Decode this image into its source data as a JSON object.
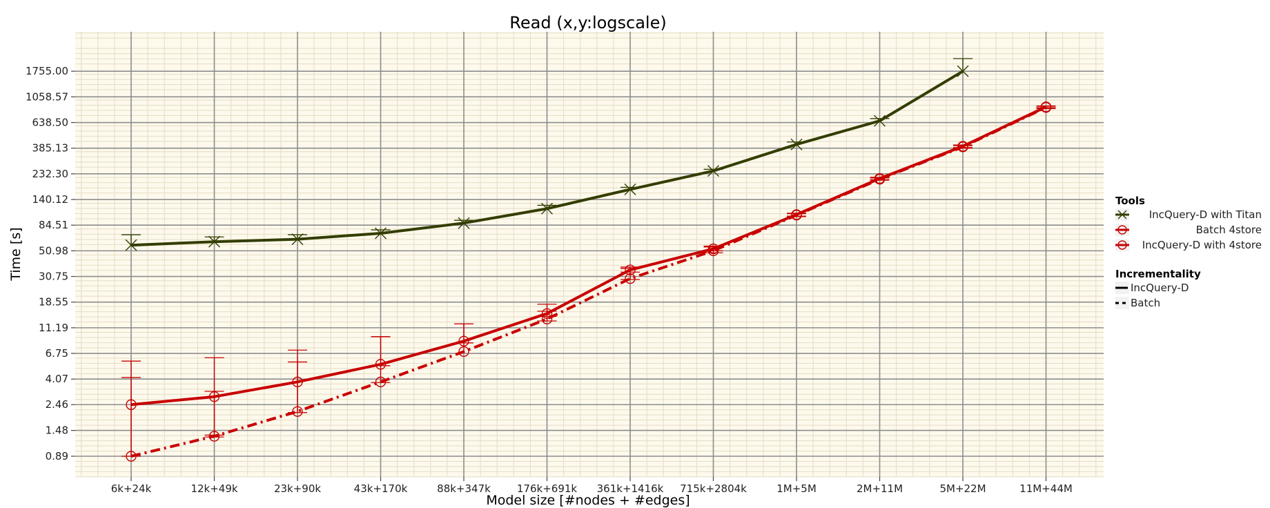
{
  "chart_data": {
    "type": "line",
    "title": "Read (x,y:logscale)",
    "xlabel": "Model size [#nodes + #edges]",
    "ylabel": "Time [s]",
    "y_scale": "log",
    "ylim": [
      0.72,
      3200
    ],
    "grid": true,
    "categories": [
      "6k+24k",
      "12k+49k",
      "23k+90k",
      "43k+170k",
      "88k+347k",
      "176k+691k",
      "361k+1416k",
      "715k+2804k",
      "1M+5M",
      "2M+11M",
      "5M+22M",
      "11M+44M"
    ],
    "y_ticks": [
      "0.89",
      "1.48",
      "2.46",
      "4.07",
      "6.75",
      "11.19",
      "18.55",
      "30.75",
      "50.98",
      "84.51",
      "140.12",
      "232.30",
      "385.13",
      "638.50",
      "1058.57",
      "1755.00"
    ],
    "series": [
      {
        "name": "IncQuery-D with Titan",
        "color": "#333d00",
        "marker": "x",
        "incrementality": "IncQuery-D",
        "values": [
          57,
          61,
          64,
          72,
          88,
          117,
          171,
          246,
          415,
          660,
          1755,
          null
        ],
        "err_low": [
          null,
          null,
          null,
          null,
          null,
          null,
          null,
          null,
          null,
          null,
          null,
          null
        ],
        "err_high": [
          70,
          67,
          70,
          77,
          93,
          125,
          178,
          254,
          435,
          690,
          2250,
          null
        ]
      },
      {
        "name": "Batch 4store",
        "color": "#c80000",
        "marker": "circle",
        "incrementality": "Batch",
        "values": [
          0.89,
          1.32,
          2.15,
          3.85,
          7.0,
          13.3,
          29.5,
          51.0,
          103,
          209,
          395,
          860
        ],
        "err_low": [
          null,
          1.3,
          2.1,
          3.8,
          null,
          12.8,
          29.0,
          49.0,
          100,
          205,
          385,
          840
        ],
        "err_high": [
          4.2,
          3.2,
          5.7,
          9.4,
          12.1,
          15.5,
          36.0,
          55.0,
          106,
          214,
          405,
          880
        ]
      },
      {
        "name": "IncQuery-D with 4store",
        "color": "#c80000",
        "marker": "circle",
        "incrementality": "IncQuery-D",
        "values": [
          2.46,
          2.88,
          3.85,
          5.45,
          8.6,
          14.8,
          35.0,
          53.0,
          104,
          212,
          400,
          870
        ],
        "err_low": [
          0.89,
          1.35,
          2.1,
          5.3,
          8.3,
          14.0,
          33.5,
          51.0,
          101,
          207,
          390,
          855
        ],
        "err_high": [
          5.8,
          6.2,
          7.2,
          9.4,
          12.1,
          17.8,
          37.0,
          56.0,
          107,
          217,
          410,
          885
        ]
      }
    ],
    "legend": {
      "placement": "right",
      "groups": [
        {
          "title": "Tools",
          "entries": [
            "IncQuery-D with Titan",
            "Batch 4store",
            "IncQuery-D with 4store"
          ]
        },
        {
          "title": "Incrementality",
          "entries": [
            "IncQuery-D",
            "Batch"
          ]
        }
      ]
    },
    "colors": {
      "panel": "#fdf9ec",
      "major_grid": "#8c8c8c",
      "minor_grid": "#e4dcc4"
    }
  }
}
